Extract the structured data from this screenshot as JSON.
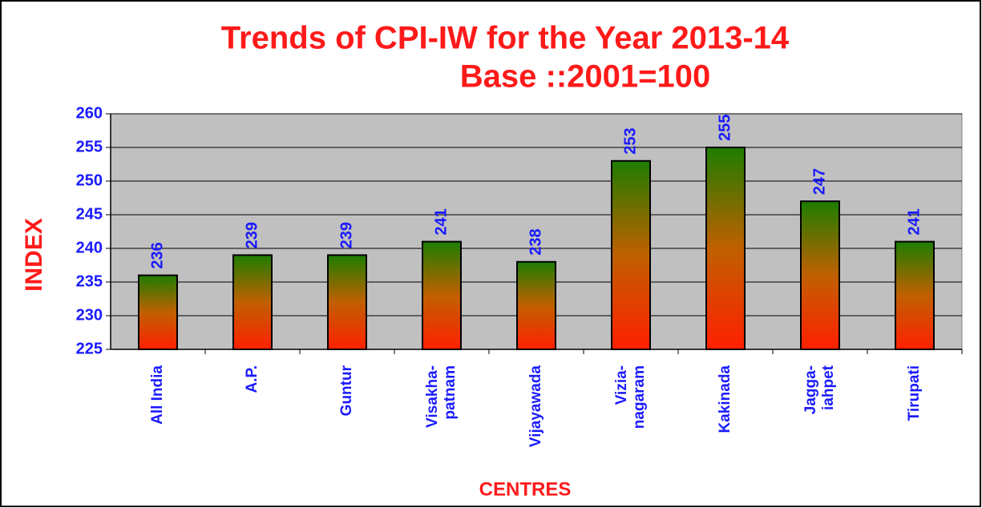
{
  "chart_data": {
    "type": "bar",
    "title": "Trends of CPI-IW for the Year 2013-14",
    "subtitle": "Base ::2001=100",
    "y_label": "INDEX",
    "x_label": "CENTRES",
    "categories": [
      "All India",
      "A.P.",
      "Guntur",
      "Visakha-\npatnam",
      "Vijayawada",
      "Vizia-\nnagaram",
      "Kakinada",
      "Jagga-\niahpet",
      "Tirupati"
    ],
    "values": [
      236,
      239,
      239,
      241,
      238,
      253,
      255,
      247,
      241
    ],
    "colors": [
      "#1e7d00",
      "#c06000",
      "#ff2000"
    ],
    "ylim": [
      225,
      260
    ],
    "yticks": [
      225,
      230,
      235,
      240,
      245,
      250,
      255,
      260
    ],
    "grid": true
  }
}
